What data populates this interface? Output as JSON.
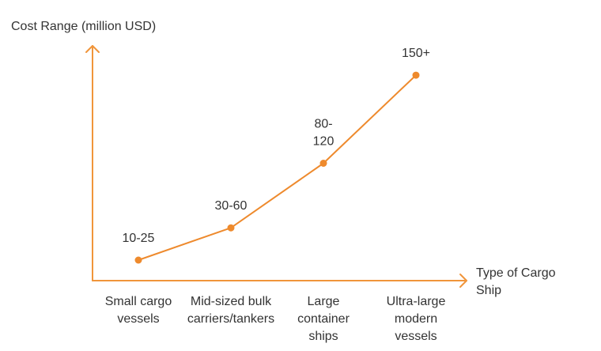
{
  "chart_data": {
    "type": "line",
    "title": "",
    "ylabel": "Cost Range (million USD)",
    "xlabel_lines": [
      "Type of Cargo",
      "Ship"
    ],
    "categories": [
      [
        "Small cargo",
        "vessels"
      ],
      [
        "Mid-sized bulk",
        "carriers/tankers"
      ],
      [
        "Large",
        "container",
        "ships"
      ],
      [
        "Ultra-large",
        "modern",
        "vessels"
      ]
    ],
    "series": [
      {
        "values": [
          17.5,
          45,
          100,
          175
        ]
      }
    ],
    "data_labels": [
      [
        "10-25"
      ],
      [
        "30-60"
      ],
      [
        "80-",
        "120"
      ],
      [
        "150+"
      ]
    ],
    "ylim": [
      0,
      200
    ],
    "grid": false,
    "legend": "none",
    "colors": {
      "axis": "#F0953A",
      "series": "#EE8A2D",
      "text": "#333333"
    }
  }
}
